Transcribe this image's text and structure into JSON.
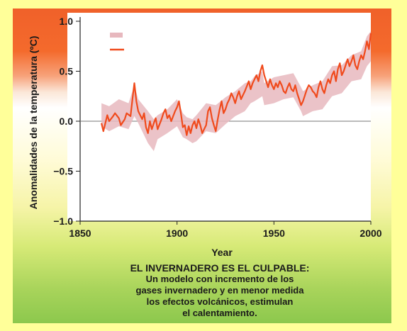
{
  "chart_data": {
    "type": "line",
    "title": "",
    "xlabel": "Year",
    "ylabel": "Anomalidades de la temperatura (ºC)",
    "xlim": [
      1850,
      2000
    ],
    "ylim": [
      -1.0,
      1.0
    ],
    "x_ticks": [
      "1850",
      "1900",
      "1950",
      "2000"
    ],
    "y_ticks": [
      "1.0",
      "0.5",
      "0.0",
      "−0.5",
      "−1.0"
    ],
    "legend_placement": "top-left",
    "series": [
      {
        "style": "band",
        "color": "#e7b8be",
        "x": [
          1861,
          1865,
          1870,
          1875,
          1878,
          1880,
          1885,
          1888,
          1890,
          1895,
          1900,
          1903,
          1905,
          1908,
          1910,
          1915,
          1920,
          1925,
          1930,
          1935,
          1938,
          1940,
          1944,
          1945,
          1950,
          1955,
          1960,
          1964,
          1965,
          1970,
          1975,
          1980,
          1985,
          1990,
          1995,
          1998,
          2000
        ],
        "low": [
          -0.05,
          -0.1,
          -0.05,
          -0.08,
          0.05,
          -0.02,
          -0.22,
          -0.3,
          -0.18,
          -0.12,
          -0.05,
          -0.16,
          -0.18,
          -0.22,
          -0.2,
          -0.1,
          -0.12,
          -0.03,
          0.05,
          0.1,
          0.18,
          0.2,
          0.25,
          0.16,
          0.18,
          0.22,
          0.24,
          0.1,
          0.05,
          0.1,
          0.12,
          0.25,
          0.28,
          0.4,
          0.42,
          0.55,
          0.6
        ],
        "high": [
          0.18,
          0.15,
          0.22,
          0.18,
          0.36,
          0.22,
          0.1,
          0.02,
          0.06,
          0.12,
          0.22,
          0.08,
          0.04,
          0.02,
          0.06,
          0.18,
          0.16,
          0.24,
          0.3,
          0.38,
          0.4,
          0.45,
          0.5,
          0.38,
          0.44,
          0.46,
          0.48,
          0.34,
          0.3,
          0.36,
          0.4,
          0.55,
          0.56,
          0.66,
          0.7,
          0.85,
          0.9
        ]
      },
      {
        "style": "line",
        "color": "#f04a1c",
        "x": [
          1861,
          1862,
          1864,
          1865,
          1867,
          1868,
          1870,
          1871,
          1873,
          1874,
          1876,
          1877,
          1878,
          1879,
          1880,
          1882,
          1883,
          1884,
          1885,
          1886,
          1887,
          1888,
          1889,
          1890,
          1892,
          1893,
          1894,
          1895,
          1896,
          1897,
          1898,
          1899,
          1900,
          1901,
          1902,
          1903,
          1904,
          1905,
          1906,
          1907,
          1908,
          1909,
          1910,
          1911,
          1912,
          1913,
          1914,
          1915,
          1916,
          1917,
          1918,
          1919,
          1920,
          1921,
          1922,
          1923,
          1924,
          1925,
          1926,
          1927,
          1928,
          1929,
          1930,
          1931,
          1932,
          1933,
          1934,
          1935,
          1936,
          1937,
          1938,
          1939,
          1940,
          1941,
          1942,
          1943,
          1944,
          1945,
          1946,
          1947,
          1948,
          1949,
          1950,
          1951,
          1952,
          1953,
          1954,
          1955,
          1956,
          1957,
          1958,
          1959,
          1960,
          1961,
          1962,
          1963,
          1964,
          1965,
          1966,
          1967,
          1968,
          1969,
          1970,
          1971,
          1972,
          1973,
          1974,
          1975,
          1976,
          1977,
          1978,
          1979,
          1980,
          1981,
          1982,
          1983,
          1984,
          1985,
          1986,
          1987,
          1988,
          1989,
          1990,
          1991,
          1992,
          1993,
          1994,
          1995,
          1996,
          1997,
          1998,
          1999,
          2000
        ],
        "y": [
          -0.02,
          -0.1,
          0.06,
          0.0,
          0.05,
          0.08,
          0.03,
          -0.04,
          0.02,
          0.08,
          0.05,
          0.22,
          0.38,
          0.2,
          0.1,
          0.02,
          0.08,
          -0.06,
          -0.12,
          0.0,
          -0.08,
          -0.02,
          0.03,
          -0.08,
          0.02,
          0.08,
          0.12,
          0.03,
          0.06,
          0.0,
          0.05,
          0.1,
          0.14,
          0.2,
          0.08,
          -0.06,
          -0.04,
          -0.14,
          -0.05,
          -0.12,
          -0.04,
          0.0,
          -0.07,
          0.02,
          -0.04,
          -0.12,
          -0.08,
          -0.04,
          0.1,
          0.14,
          0.03,
          -0.04,
          -0.1,
          0.02,
          0.12,
          0.2,
          0.08,
          0.12,
          0.18,
          0.22,
          0.28,
          0.24,
          0.18,
          0.25,
          0.3,
          0.22,
          0.26,
          0.3,
          0.35,
          0.4,
          0.32,
          0.38,
          0.42,
          0.46,
          0.4,
          0.5,
          0.56,
          0.46,
          0.4,
          0.34,
          0.42,
          0.36,
          0.32,
          0.38,
          0.34,
          0.4,
          0.36,
          0.3,
          0.28,
          0.34,
          0.38,
          0.32,
          0.3,
          0.36,
          0.28,
          0.22,
          0.16,
          0.2,
          0.26,
          0.32,
          0.36,
          0.34,
          0.3,
          0.28,
          0.24,
          0.34,
          0.4,
          0.32,
          0.28,
          0.36,
          0.42,
          0.38,
          0.46,
          0.5,
          0.4,
          0.52,
          0.58,
          0.46,
          0.5,
          0.56,
          0.62,
          0.55,
          0.6,
          0.66,
          0.56,
          0.52,
          0.6,
          0.66,
          0.62,
          0.7,
          0.8,
          0.72,
          0.88
        ]
      }
    ]
  },
  "caption": {
    "headline": "EL INVERNADERO ES EL CULPABLE:",
    "line1": "Un modelo con incremento de los",
    "line2": "gases invernadero y en menor medida",
    "line3": "los efectos volcánicos, estimulan",
    "line4": "el calentamiento."
  }
}
